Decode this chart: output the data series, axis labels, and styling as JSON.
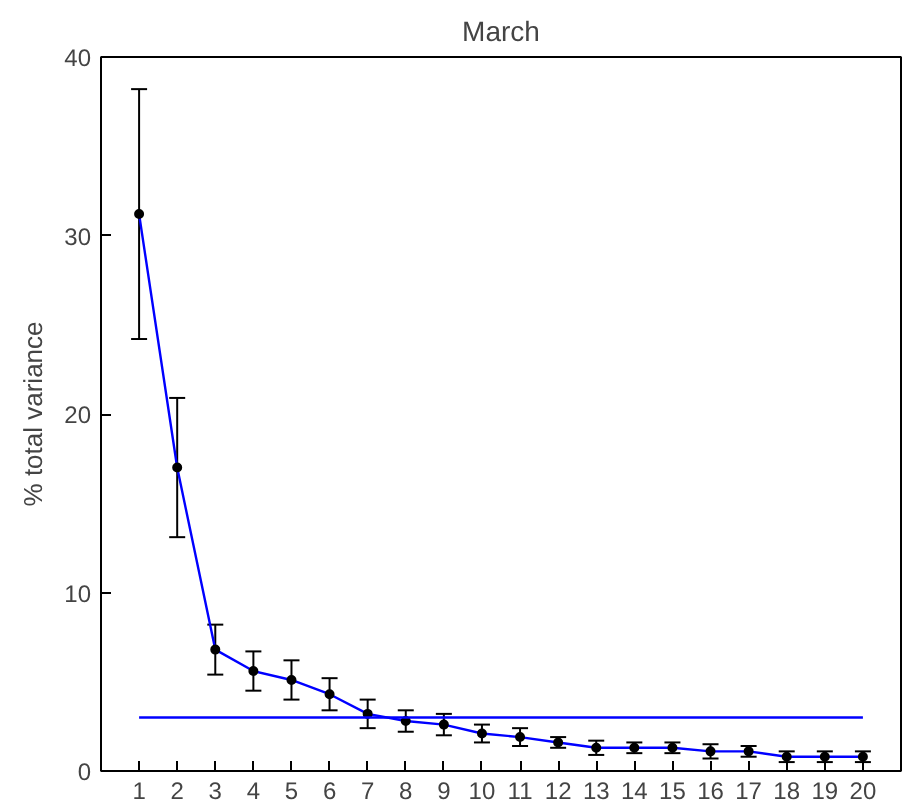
{
  "chart_data": {
    "type": "line",
    "title": "March",
    "ylabel": "% total variance",
    "x": [
      1,
      2,
      3,
      4,
      5,
      6,
      7,
      8,
      9,
      10,
      11,
      12,
      13,
      14,
      15,
      16,
      17,
      18,
      19,
      20
    ],
    "xlim": [
      0,
      21
    ],
    "xticks": [
      1,
      2,
      3,
      4,
      5,
      6,
      7,
      8,
      9,
      10,
      11,
      12,
      13,
      14,
      15,
      16,
      17,
      18,
      19,
      20
    ],
    "ylim": [
      0,
      40
    ],
    "yticks": [
      0,
      10,
      20,
      30,
      40
    ],
    "grid": false,
    "marker": "circle",
    "line_style": "solid",
    "series": [
      {
        "color": "#0000ff",
        "values": [
          31.2,
          17,
          6.8,
          5.6,
          5.1,
          4.3,
          3.2,
          2.8,
          2.6,
          2.1,
          1.9,
          1.6,
          1.3,
          1.3,
          1.3,
          1.1,
          1.1,
          0.8,
          0.8,
          0.8
        ],
        "errors": [
          7,
          3.9,
          1.4,
          1.1,
          1.1,
          0.9,
          0.8,
          0.6,
          0.6,
          0.5,
          0.5,
          0.3,
          0.4,
          0.3,
          0.3,
          0.4,
          0.3,
          0.3,
          0.3,
          0.3
        ]
      },
      {
        "color": "#0000ff",
        "x": [
          1,
          20
        ],
        "values": [
          3,
          3
        ],
        "marker": "none"
      }
    ]
  }
}
